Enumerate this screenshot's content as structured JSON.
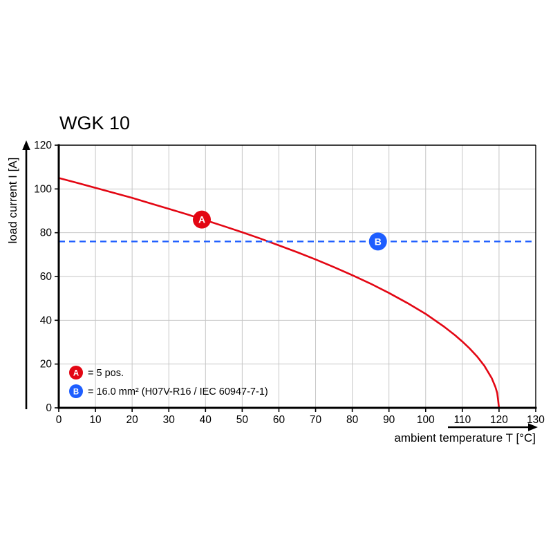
{
  "chart_data": {
    "type": "line",
    "title": "WGK 10",
    "xlabel": "ambient temperature T [°C]",
    "ylabel": "load current I [A]",
    "xlim": [
      0,
      130
    ],
    "ylim": [
      0,
      120
    ],
    "x_ticks": [
      0,
      10,
      20,
      30,
      40,
      50,
      60,
      70,
      80,
      90,
      100,
      110,
      120,
      130
    ],
    "y_ticks": [
      0,
      20,
      40,
      60,
      80,
      100,
      120
    ],
    "grid": true,
    "series": [
      {
        "name": "A",
        "label": "= 5 pos.",
        "style": "solid-curve",
        "color": "#e30613",
        "points": [
          [
            0,
            105
          ],
          [
            5,
            102.8
          ],
          [
            10,
            100.5
          ],
          [
            15,
            98.2
          ],
          [
            20,
            95.9
          ],
          [
            25,
            93.4
          ],
          [
            30,
            90.9
          ],
          [
            35,
            88.4
          ],
          [
            40,
            85.7
          ],
          [
            45,
            83.0
          ],
          [
            50,
            80.2
          ],
          [
            55,
            77.3
          ],
          [
            60,
            74.2
          ],
          [
            65,
            71.1
          ],
          [
            70,
            67.8
          ],
          [
            75,
            64.3
          ],
          [
            80,
            60.6
          ],
          [
            85,
            56.7
          ],
          [
            90,
            52.5
          ],
          [
            95,
            47.9
          ],
          [
            100,
            42.9
          ],
          [
            105,
            37.1
          ],
          [
            108,
            33.2
          ],
          [
            110,
            30.3
          ],
          [
            112,
            27.1
          ],
          [
            114,
            23.5
          ],
          [
            116,
            19.2
          ],
          [
            118,
            13.6
          ],
          [
            119,
            9.6
          ],
          [
            119.5,
            6.8
          ],
          [
            120,
            0
          ]
        ]
      },
      {
        "name": "B",
        "label": "= 16.0 mm² (H07V-R16 / IEC 60947-7-1)",
        "style": "dashed-horizontal",
        "color": "#1e5eff",
        "value": 76
      }
    ],
    "markers": [
      {
        "name": "A",
        "x": 39,
        "y": 86,
        "color": "#e30613"
      },
      {
        "name": "B",
        "x": 87,
        "y": 76,
        "color": "#1e5eff"
      }
    ],
    "legend_position": "bottom-left-inside"
  }
}
